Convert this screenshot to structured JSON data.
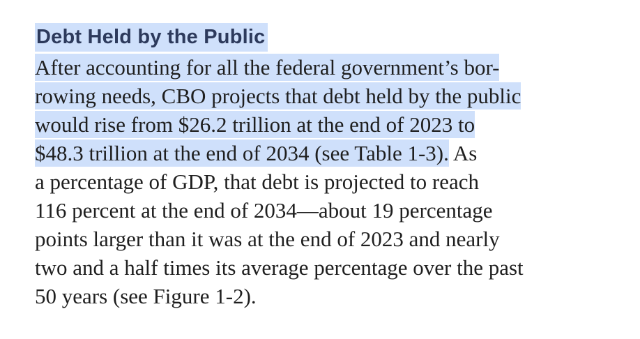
{
  "section": {
    "heading": "Debt Held by the Public",
    "lines": [
      {
        "highlighted": "After accounting for all the federal government’s bor-",
        "plain": ""
      },
      {
        "highlighted": "rowing needs, CBO projects that debt held by the public",
        "plain": ""
      },
      {
        "highlighted": "would rise from $26.2 trillion at the end of 2023 to",
        "plain": ""
      },
      {
        "highlighted": "$48.3 trillion at the end of 2034 (see Table 1-3).",
        "plain": " As"
      },
      {
        "highlighted": "",
        "plain": "a percentage of GDP, that debt is projected to reach"
      },
      {
        "highlighted": "",
        "plain": "116 percent at the end of 2034—about 19 percentage"
      },
      {
        "highlighted": "",
        "plain": "points larger than it was at the end of 2023 and nearly"
      },
      {
        "highlighted": "",
        "plain": "two and a half times its average percentage over the past"
      },
      {
        "highlighted": "",
        "plain": "50 years (see Figure 1-2)."
      }
    ]
  },
  "colors": {
    "highlight": "#cfe0fb",
    "heading_text": "#2d3a5c",
    "body_text": "#1f1f1f"
  }
}
